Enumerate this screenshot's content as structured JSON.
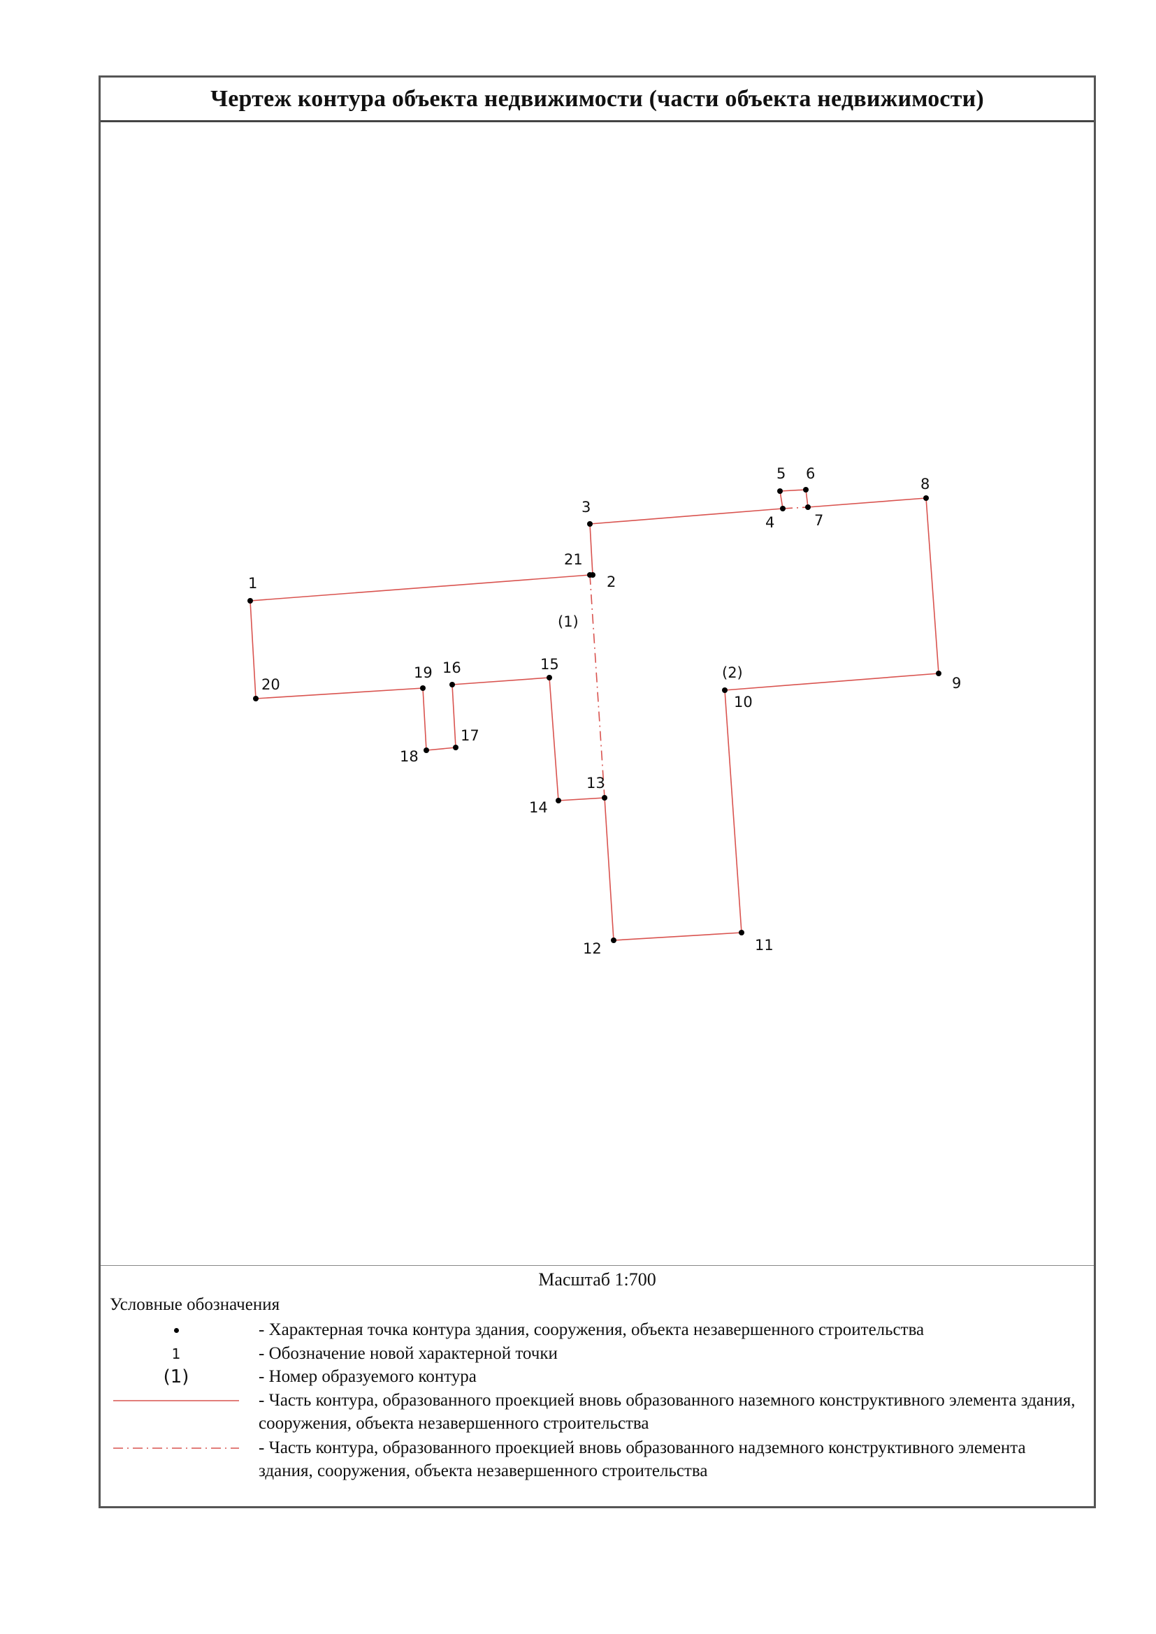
{
  "title": "Чертеж контура объекта недвижимости (части объекта недвижимости)",
  "scale_text": "Масштаб 1:700",
  "legend": {
    "title": "Условные обозначения",
    "items": [
      {
        "symbol": "dot",
        "text": "- Характерная точка контура здания, сооружения, объекта незавершенного строительства"
      },
      {
        "symbol": "number",
        "symbol_text": "1",
        "text": "- Обозначение новой характерной точки"
      },
      {
        "symbol": "contour",
        "symbol_text": "(1)",
        "text": "- Номер образуемого контура"
      },
      {
        "symbol": "solid-line",
        "text": "- Часть контура, образованного проекцией вновь образованного наземного конструктивного элемента здания, сооружения, объекта незавершенного строительства"
      },
      {
        "symbol": "dashdot-line",
        "text": "- Часть контура, образованного проекцией вновь образованного надземного конструктивного элемента здания, сооружения, объекта незавершенного строительства"
      }
    ]
  },
  "colors": {
    "contour": "#d9534f",
    "point": "#000000",
    "frame": "#555555"
  },
  "points": [
    {
      "id": "1",
      "label": "1"
    },
    {
      "id": "2",
      "label": "2"
    },
    {
      "id": "3",
      "label": "3"
    },
    {
      "id": "4",
      "label": "4"
    },
    {
      "id": "5",
      "label": "5"
    },
    {
      "id": "6",
      "label": "6"
    },
    {
      "id": "7",
      "label": "7"
    },
    {
      "id": "8",
      "label": "8"
    },
    {
      "id": "9",
      "label": "9"
    },
    {
      "id": "10",
      "label": "10"
    },
    {
      "id": "11",
      "label": "11"
    },
    {
      "id": "12",
      "label": "12"
    },
    {
      "id": "13",
      "label": "13"
    },
    {
      "id": "14",
      "label": "14"
    },
    {
      "id": "15",
      "label": "15"
    },
    {
      "id": "16",
      "label": "16"
    },
    {
      "id": "17",
      "label": "17"
    },
    {
      "id": "18",
      "label": "18"
    },
    {
      "id": "19",
      "label": "19"
    },
    {
      "id": "20",
      "label": "20"
    },
    {
      "id": "21",
      "label": "21"
    }
  ],
  "contours": [
    {
      "id": "c1",
      "label": "(1)"
    },
    {
      "id": "c2",
      "label": "(2)"
    }
  ]
}
